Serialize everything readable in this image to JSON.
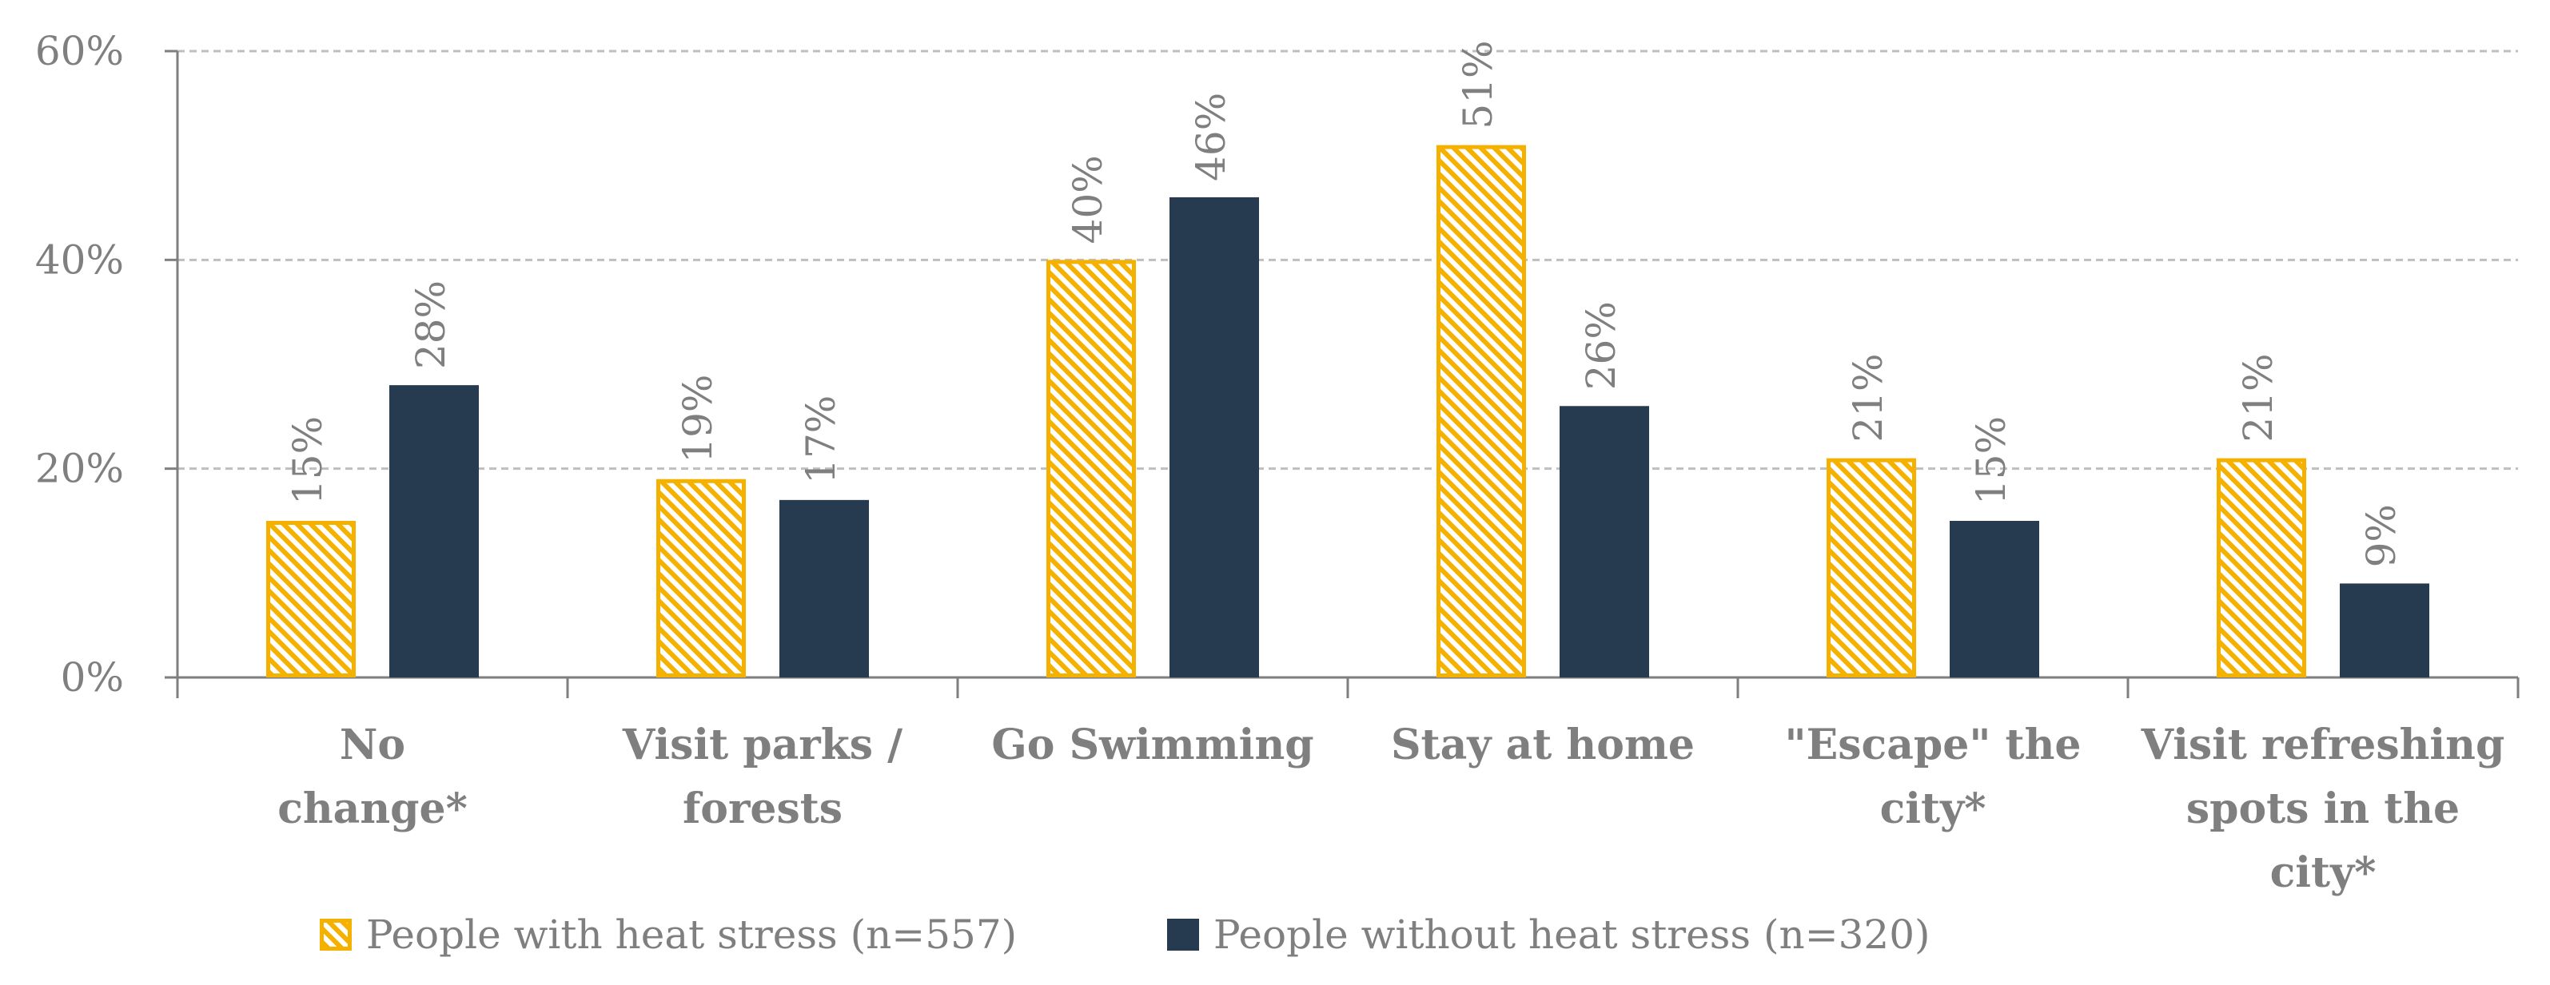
{
  "chart_data": {
    "type": "bar",
    "categories": [
      [
        "No",
        "change*"
      ],
      [
        "Visit parks /",
        "forests"
      ],
      [
        "Go Swimming"
      ],
      [
        "Stay at home"
      ],
      [
        "\"Escape\" the",
        "city*"
      ],
      [
        "Visit refreshing",
        "spots in the",
        "city*"
      ]
    ],
    "series": [
      {
        "name": "People with heat stress (n=557)",
        "values": [
          15,
          19,
          40,
          51,
          21,
          21
        ],
        "labels": [
          "15%",
          "19%",
          "40%",
          "51%",
          "21%",
          "21%"
        ],
        "color": "#f5b100",
        "pattern": "diagonal-stripes"
      },
      {
        "name": "People without heat stress (n=320)",
        "values": [
          28,
          17,
          46,
          26,
          15,
          9
        ],
        "labels": [
          "28%",
          "17%",
          "46%",
          "26%",
          "15%",
          "9%"
        ],
        "color": "#263a50",
        "pattern": "solid"
      }
    ],
    "y_ticks": [
      0,
      20,
      40,
      60
    ],
    "y_tick_labels": [
      "0%",
      "20%",
      "40%",
      "60%"
    ],
    "ylim": [
      0,
      60
    ],
    "grid": true,
    "legend_position": "bottom",
    "title": "",
    "xlabel": "",
    "ylabel": ""
  }
}
